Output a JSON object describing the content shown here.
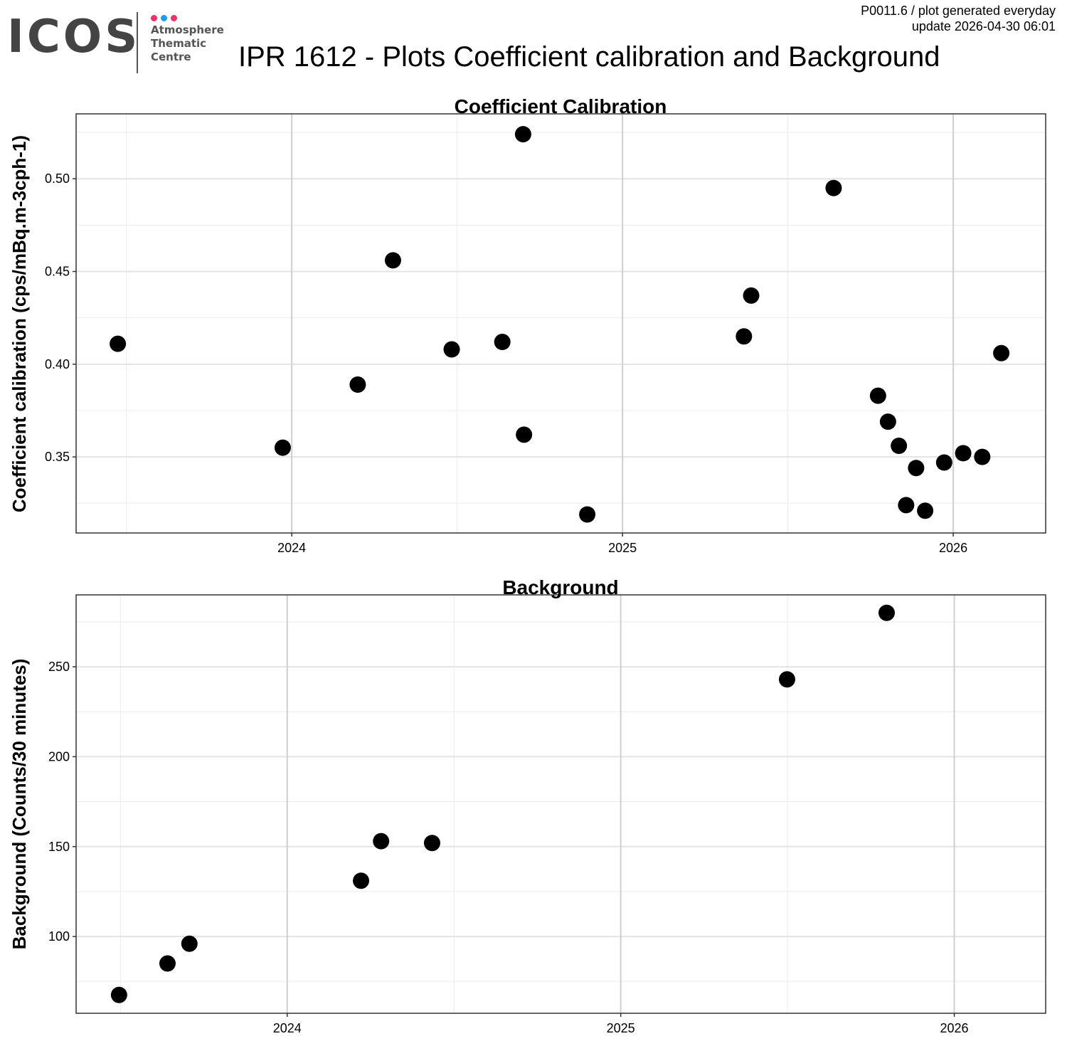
{
  "header": {
    "logo": {
      "word": "ICOS",
      "subtitle_lines": [
        "Atmosphere",
        "Thematic",
        "Centre"
      ],
      "dot_colors": [
        "#e8336d",
        "#1e9be9",
        "#e8336d"
      ]
    },
    "title": "IPR 1612 - Plots Coefficient calibration and Background",
    "note_line1": "P0011.6 / plot generated everyday",
    "note_line2": "update  2026-04-30 06:01"
  },
  "chart_data": [
    {
      "type": "scatter",
      "title": "Coefficient Calibration",
      "xlabel": "",
      "ylabel": "Coefficient calibration (cps/mBq.m-3cph-1)",
      "x_ticks": [
        "2024",
        "2025",
        "2026"
      ],
      "y_ticks": [
        0.35,
        0.4,
        0.45,
        0.5
      ],
      "y_tick_labels": [
        "0.35",
        "0.40",
        "0.45",
        "0.50"
      ],
      "xlim": [
        "2023-05-08",
        "2026-04-13"
      ],
      "ylim": [
        0.309,
        0.535
      ],
      "grid": true,
      "point_color": "#000000",
      "points": [
        {
          "x": "2023-06-23",
          "y": 0.411
        },
        {
          "x": "2023-12-22",
          "y": 0.355
        },
        {
          "x": "2024-03-14",
          "y": 0.389
        },
        {
          "x": "2024-04-22",
          "y": 0.456
        },
        {
          "x": "2024-06-26",
          "y": 0.408
        },
        {
          "x": "2024-08-21",
          "y": 0.412
        },
        {
          "x": "2024-09-13",
          "y": 0.524
        },
        {
          "x": "2024-09-14",
          "y": 0.362
        },
        {
          "x": "2024-11-23",
          "y": 0.319
        },
        {
          "x": "2025-05-15",
          "y": 0.415
        },
        {
          "x": "2025-05-23",
          "y": 0.437
        },
        {
          "x": "2025-08-22",
          "y": 0.495
        },
        {
          "x": "2025-10-10",
          "y": 0.383
        },
        {
          "x": "2025-10-21",
          "y": 0.369
        },
        {
          "x": "2025-11-02",
          "y": 0.356
        },
        {
          "x": "2025-11-10",
          "y": 0.324
        },
        {
          "x": "2025-11-21",
          "y": 0.344
        },
        {
          "x": "2025-12-01",
          "y": 0.321
        },
        {
          "x": "2025-12-22",
          "y": 0.347
        },
        {
          "x": "2026-01-12",
          "y": 0.352
        },
        {
          "x": "2026-02-02",
          "y": 0.35
        },
        {
          "x": "2026-02-23",
          "y": 0.406
        }
      ]
    },
    {
      "type": "scatter",
      "title": "Background",
      "xlabel": "",
      "ylabel": "Background (Counts/30 minutes)",
      "x_ticks": [
        "2024",
        "2025",
        "2026"
      ],
      "y_ticks": [
        100,
        150,
        200,
        250
      ],
      "y_tick_labels": [
        "100",
        "150",
        "200",
        "250"
      ],
      "xlim": [
        "2023-05-15",
        "2026-04-11"
      ],
      "ylim": [
        57.3,
        290
      ],
      "grid": true,
      "point_color": "#000000",
      "points": [
        {
          "x": "2023-07-01",
          "y": 67.5
        },
        {
          "x": "2023-08-23",
          "y": 85
        },
        {
          "x": "2023-09-16",
          "y": 96
        },
        {
          "x": "2024-03-22",
          "y": 131
        },
        {
          "x": "2024-04-13",
          "y": 153
        },
        {
          "x": "2024-06-08",
          "y": 152
        },
        {
          "x": "2025-07-02",
          "y": 243
        },
        {
          "x": "2025-10-19",
          "y": 280
        }
      ]
    }
  ]
}
